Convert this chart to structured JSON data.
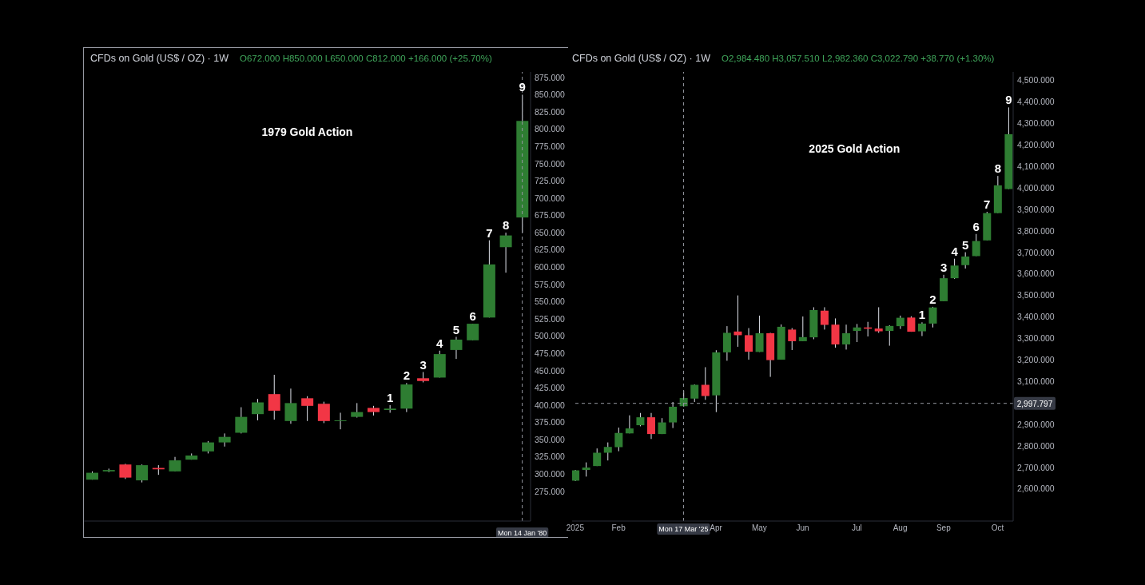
{
  "chart_data": [
    {
      "type": "candlestick",
      "title": "CFDs on Gold (US$ / OZ) · 1W",
      "subtitle": "O672.000 H850.000 L650.000 C812.000 +166.000 (+25.70%)",
      "annotations": [
        "1979 Gold Action"
      ],
      "categories": [
        null,
        null,
        null,
        null,
        null,
        null,
        null,
        null,
        null,
        null,
        null,
        null,
        null,
        null,
        null,
        null,
        null,
        null,
        null,
        null,
        null,
        null,
        null,
        null,
        null,
        null,
        "Mon 14 Jan '80"
      ],
      "ohlc": [
        [
          292,
          304,
          292,
          302
        ],
        [
          304,
          308,
          303,
          306
        ],
        [
          314,
          315,
          293,
          295
        ],
        [
          291,
          314,
          288,
          313
        ],
        [
          309,
          313,
          299,
          307
        ],
        [
          304,
          325,
          304,
          320
        ],
        [
          321,
          330,
          321,
          327
        ],
        [
          333,
          348,
          330,
          346
        ],
        [
          346,
          359,
          340,
          354
        ],
        [
          360,
          397,
          359,
          383
        ],
        [
          387,
          409,
          378,
          404
        ],
        [
          416,
          444,
          379,
          392
        ],
        [
          377,
          424,
          373,
          403
        ],
        [
          410,
          413,
          377,
          399
        ],
        [
          402,
          405,
          374,
          377
        ],
        [
          377,
          389,
          365,
          378
        ],
        [
          383,
          403,
          382,
          390
        ],
        [
          396,
          399,
          385,
          390
        ],
        [
          393,
          400,
          389,
          395
        ],
        [
          395,
          432,
          390,
          430
        ],
        [
          439,
          448,
          433,
          435
        ],
        [
          440,
          479,
          440,
          474
        ],
        [
          480,
          499,
          467,
          495
        ],
        [
          494,
          518,
          494,
          518
        ],
        [
          527,
          639,
          527,
          604
        ],
        [
          629,
          650,
          592,
          646
        ],
        [
          672,
          850,
          650,
          812
        ]
      ],
      "value_labels": [
        null,
        null,
        null,
        null,
        null,
        null,
        null,
        null,
        null,
        null,
        null,
        null,
        null,
        null,
        null,
        null,
        null,
        null,
        "1",
        "2",
        "3",
        "4",
        "5",
        "6",
        "7",
        "8",
        "9"
      ],
      "colors": [
        "#2e7d32",
        "#2e7d32",
        "#f23645",
        "#2e7d32",
        "#f23645",
        "#2e7d32",
        "#2e7d32",
        "#2e7d32",
        "#2e7d32",
        "#2e7d32",
        "#2e7d32",
        "#f23645",
        "#2e7d32",
        "#f23645",
        "#f23645",
        "#2e7d32",
        "#2e7d32",
        "#f23645",
        "#2e7d32",
        "#2e7d32",
        "#f23645",
        "#2e7d32",
        "#2e7d32",
        "#2e7d32",
        "#2e7d32",
        "#2e7d32",
        "#2e7d32"
      ],
      "ylim": [
        232,
        883
      ],
      "yticks": [
        {
          "value": 275,
          "label": "275.000"
        },
        {
          "value": 300,
          "label": "300.000"
        },
        {
          "value": 325,
          "label": "325.000"
        },
        {
          "value": 350,
          "label": "350.000"
        },
        {
          "value": 375,
          "label": "375.000"
        },
        {
          "value": 400,
          "label": "400.000"
        },
        {
          "value": 425,
          "label": "425.000"
        },
        {
          "value": 450,
          "label": "450.000"
        },
        {
          "value": 475,
          "label": "475.000"
        },
        {
          "value": 500,
          "label": "500.000"
        },
        {
          "value": 525,
          "label": "525.000"
        },
        {
          "value": 550,
          "label": "550.000"
        },
        {
          "value": 575,
          "label": "575.000"
        },
        {
          "value": 600,
          "label": "600.000"
        },
        {
          "value": 625,
          "label": "625.000"
        },
        {
          "value": 650,
          "label": "650.000"
        },
        {
          "value": 675,
          "label": "675.000"
        },
        {
          "value": 700,
          "label": "700.000"
        },
        {
          "value": 725,
          "label": "725.000"
        },
        {
          "value": 750,
          "label": "750.000"
        },
        {
          "value": 775,
          "label": "775.000"
        },
        {
          "value": 800,
          "label": "800.000"
        },
        {
          "value": 825,
          "label": "825.000"
        },
        {
          "value": 850,
          "label": "850.000"
        },
        {
          "value": 875,
          "label": "875.000"
        }
      ],
      "ref_lines": [
        {
          "axis": "x",
          "value": "Mon 14 Jan '80",
          "line_style": "dashed",
          "color": "#9598a1"
        }
      ]
    },
    {
      "type": "candlestick",
      "title": "CFDs on Gold (US$ / OZ) · 1W",
      "subtitle": "O2,984.480 H3,057.510 L2,982.360 C3,022.790 +38.770 (+1.30%)",
      "annotations": [
        "2025 Gold Action"
      ],
      "x": [
        "2025-01-06",
        "2025-01-13",
        "2025-01-20",
        "2025-01-27",
        "2025-02-03",
        "2025-02-10",
        "2025-02-17",
        "2025-02-24",
        "2025-03-03",
        "2025-03-10",
        "2025-03-17",
        "2025-03-24",
        "2025-03-31",
        "2025-04-07",
        "2025-04-14",
        "2025-04-21",
        "2025-04-28",
        "2025-05-05",
        "2025-05-12",
        "2025-05-19",
        "2025-05-26",
        "2025-06-02",
        "2025-06-09",
        "2025-06-16",
        "2025-06-23",
        "2025-06-30",
        "2025-07-07",
        "2025-07-14",
        "2025-07-21",
        "2025-07-28",
        "2025-08-04",
        "2025-08-11",
        "2025-08-18",
        "2025-08-25",
        "2025-09-01",
        "2025-09-08",
        "2025-09-15",
        "2025-09-22",
        "2025-09-29",
        "2025-10-06",
        "2025-10-13"
      ],
      "ohlc": [
        [
          2638,
          2688,
          2636,
          2686
        ],
        [
          2688,
          2723,
          2657,
          2699
        ],
        [
          2706,
          2788,
          2706,
          2768
        ],
        [
          2768,
          2816,
          2732,
          2795
        ],
        [
          2794,
          2885,
          2775,
          2860
        ],
        [
          2858,
          2942,
          2858,
          2881
        ],
        [
          2896,
          2953,
          2891,
          2933
        ],
        [
          2933,
          2953,
          2832,
          2855
        ],
        [
          2855,
          2929,
          2855,
          2909
        ],
        [
          2909,
          3004,
          2883,
          2982
        ],
        [
          2984.48,
          3057.51,
          2982.36,
          3022.79
        ],
        [
          3020,
          3086,
          3004,
          3084
        ],
        [
          3084,
          3166,
          3014,
          3032
        ],
        [
          3035,
          3245,
          2957,
          3235
        ],
        [
          3235,
          3357,
          3196,
          3326
        ],
        [
          3332,
          3500,
          3261,
          3315
        ],
        [
          3315,
          3348,
          3201,
          3238
        ],
        [
          3237,
          3406,
          3237,
          3324
        ],
        [
          3324,
          3326,
          3121,
          3199
        ],
        [
          3201,
          3365,
          3201,
          3354
        ],
        [
          3341,
          3348,
          3246,
          3287
        ],
        [
          3287,
          3402,
          3287,
          3306
        ],
        [
          3305,
          3445,
          3296,
          3432
        ],
        [
          3429,
          3445,
          3341,
          3363
        ],
        [
          3364,
          3393,
          3257,
          3272
        ],
        [
          3272,
          3364,
          3248,
          3324
        ],
        [
          3335,
          3367,
          3283,
          3351
        ],
        [
          3351,
          3377,
          3309,
          3345
        ],
        [
          3346,
          3445,
          3326,
          3333
        ],
        [
          3335,
          3361,
          3266,
          3358
        ],
        [
          3357,
          3406,
          3344,
          3396
        ],
        [
          3397,
          3403,
          3331,
          3331
        ],
        [
          3333,
          3375,
          3311,
          3369
        ],
        [
          3369,
          3447,
          3351,
          3444
        ],
        [
          3473,
          3596,
          3473,
          3580
        ],
        [
          3580,
          3671,
          3577,
          3639
        ],
        [
          3641,
          3701,
          3625,
          3681
        ],
        [
          3683,
          3786,
          3683,
          3753
        ],
        [
          3756,
          3889,
          3756,
          3883
        ],
        [
          3883,
          4056,
          3883,
          4012
        ],
        [
          3995,
          4375,
          3995,
          4250
        ]
      ],
      "value_labels": [
        null,
        null,
        null,
        null,
        null,
        null,
        null,
        null,
        null,
        null,
        null,
        null,
        null,
        null,
        null,
        null,
        null,
        null,
        null,
        null,
        null,
        null,
        null,
        null,
        null,
        null,
        null,
        null,
        null,
        null,
        null,
        null,
        "1",
        "2",
        "3",
        "4",
        "5",
        "6",
        "7",
        "8",
        "9"
      ],
      "colors": [
        "#2e7d32",
        "#2e7d32",
        "#2e7d32",
        "#2e7d32",
        "#2e7d32",
        "#2e7d32",
        "#2e7d32",
        "#f23645",
        "#2e7d32",
        "#2e7d32",
        "#2e7d32",
        "#2e7d32",
        "#f23645",
        "#2e7d32",
        "#2e7d32",
        "#f23645",
        "#f23645",
        "#2e7d32",
        "#f23645",
        "#2e7d32",
        "#f23645",
        "#2e7d32",
        "#2e7d32",
        "#f23645",
        "#f23645",
        "#2e7d32",
        "#2e7d32",
        "#f23645",
        "#f23645",
        "#2e7d32",
        "#2e7d32",
        "#f23645",
        "#2e7d32",
        "#2e7d32",
        "#2e7d32",
        "#2e7d32",
        "#2e7d32",
        "#2e7d32",
        "#2e7d32",
        "#2e7d32",
        "#2e7d32"
      ],
      "xlim": [
        "2025-01-04",
        "2025-10-16"
      ],
      "ylim": [
        2450,
        4540
      ],
      "xticks": [
        {
          "value": "2025-01-06",
          "label": "2025"
        },
        {
          "value": "2025-02-03",
          "label": "Feb"
        },
        {
          "value": "2025-04-07",
          "label": "Apr"
        },
        {
          "value": "2025-05-05",
          "label": "May"
        },
        {
          "value": "2025-06-02",
          "label": "Jun"
        },
        {
          "value": "2025-07-07",
          "label": "Jul"
        },
        {
          "value": "2025-08-04",
          "label": "Aug"
        },
        {
          "value": "2025-09-01",
          "label": "Sep"
        },
        {
          "value": "2025-10-06",
          "label": "Oct"
        }
      ],
      "yticks": [
        {
          "value": 2600,
          "label": "2,600.000"
        },
        {
          "value": 2700,
          "label": "2,700.000"
        },
        {
          "value": 2800,
          "label": "2,800.000"
        },
        {
          "value": 2900,
          "label": "2,900.000"
        },
        {
          "value": 3100,
          "label": "3,100.000"
        },
        {
          "value": 3200,
          "label": "3,200.000"
        },
        {
          "value": 3300,
          "label": "3,300.000"
        },
        {
          "value": 3400,
          "label": "3,400.000"
        },
        {
          "value": 3500,
          "label": "3,500.000"
        },
        {
          "value": 3600,
          "label": "3,600.000"
        },
        {
          "value": 3700,
          "label": "3,700.000"
        },
        {
          "value": 3800,
          "label": "3,800.000"
        },
        {
          "value": 3900,
          "label": "3,900.000"
        },
        {
          "value": 4000,
          "label": "4,000.000"
        },
        {
          "value": 4100,
          "label": "4,100.000"
        },
        {
          "value": 4200,
          "label": "4,200.000"
        },
        {
          "value": 4300,
          "label": "4,300.000"
        },
        {
          "value": 4400,
          "label": "4,400.000"
        },
        {
          "value": 4500,
          "label": "4,500.000"
        }
      ],
      "ref_lines": [
        {
          "axis": "x",
          "value": "2025-03-17",
          "label": "Mon 17 Mar '25",
          "line_style": "dashed",
          "color": "#9598a1"
        },
        {
          "axis": "y",
          "value": 2997.797,
          "label": "2,997.797",
          "line_style": "dashed",
          "color": "#9598a1"
        }
      ]
    }
  ]
}
